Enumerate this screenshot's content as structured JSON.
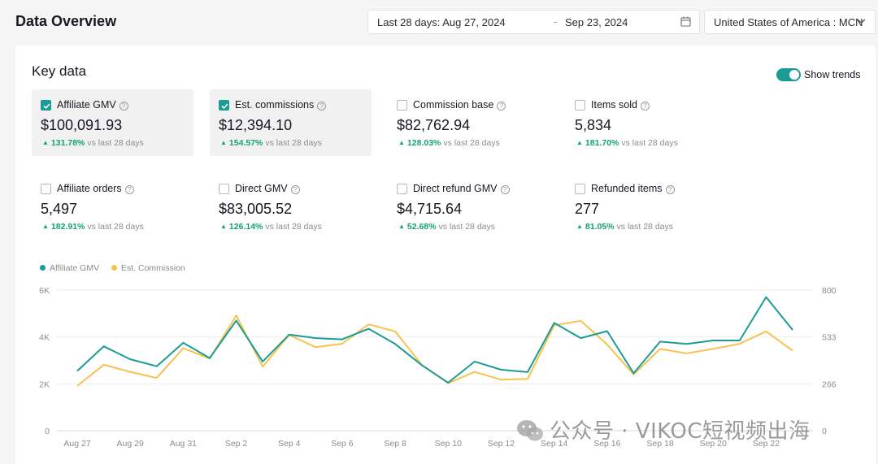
{
  "header": {
    "title": "Data Overview",
    "date_start": "Last 28 days: Aug 27, 2024",
    "date_sep": "-",
    "date_end": "Sep 23, 2024",
    "region": "United States of America : MCN"
  },
  "key_data": {
    "title": "Key data",
    "show_trends_label": "Show trends",
    "show_trends_on": true
  },
  "metrics": [
    {
      "label": "Affiliate GMV",
      "value": "$100,091.93",
      "change": "131.78%",
      "compare": "vs last 28 days",
      "checked": true
    },
    {
      "label": "Est. commissions",
      "value": "$12,394.10",
      "change": "154.57%",
      "compare": "vs last 28 days",
      "checked": true
    },
    {
      "label": "Commission base",
      "value": "$82,762.94",
      "change": "128.03%",
      "compare": "vs last 28 days",
      "checked": false
    },
    {
      "label": "Items sold",
      "value": "5,834",
      "change": "181.70%",
      "compare": "vs last 28 days",
      "checked": false
    },
    {
      "label": "Affiliate orders",
      "value": "5,497",
      "change": "182.91%",
      "compare": "vs last 28 days",
      "checked": false
    },
    {
      "label": "Direct GMV",
      "value": "$83,005.52",
      "change": "126.14%",
      "compare": "vs last 28 days",
      "checked": false
    },
    {
      "label": "Direct refund GMV",
      "value": "$4,715.64",
      "change": "52.68%",
      "compare": "vs last 28 days",
      "checked": false
    },
    {
      "label": "Refunded items",
      "value": "277",
      "change": "81.05%",
      "compare": "vs last 28 days",
      "checked": false
    }
  ],
  "colors": {
    "teal": "#1a9c94",
    "yellow": "#f7c24f",
    "green": "#13a36d"
  },
  "chart_data": {
    "type": "line",
    "title": "",
    "x": [
      "Aug 27",
      "Aug 28",
      "Aug 29",
      "Aug 30",
      "Aug 31",
      "Sep 1",
      "Sep 2",
      "Sep 3",
      "Sep 4",
      "Sep 5",
      "Sep 6",
      "Sep 7",
      "Sep 8",
      "Sep 9",
      "Sep 10",
      "Sep 11",
      "Sep 12",
      "Sep 13",
      "Sep 14",
      "Sep 15",
      "Sep 16",
      "Sep 17",
      "Sep 18",
      "Sep 19",
      "Sep 20",
      "Sep 21",
      "Sep 22",
      "Sep 23"
    ],
    "x_tick_labels": [
      "Aug 27",
      "Aug 29",
      "Aug 31",
      "Sep 2",
      "Sep 4",
      "Sep 6",
      "Sep 8",
      "Sep 10",
      "Sep 12",
      "Sep 14",
      "Sep 16",
      "Sep 18",
      "Sep 20",
      "Sep 22"
    ],
    "y_left": {
      "ticks": [
        "0",
        "2K",
        "4K",
        "6K"
      ],
      "ylim": [
        0,
        6000
      ]
    },
    "y_right": {
      "ticks": [
        "0",
        "266",
        "533",
        "800"
      ],
      "ylim": [
        0,
        800
      ]
    },
    "legend": [
      "Affiliate GMV",
      "Est. Commission"
    ],
    "legend_position": "top-left",
    "series": [
      {
        "name": "Affiliate GMV",
        "axis": "left",
        "color": "#1a9c94",
        "values": [
          2550,
          3600,
          3050,
          2750,
          3750,
          3100,
          4700,
          2950,
          4100,
          3950,
          3900,
          4350,
          3700,
          2800,
          2050,
          2950,
          2600,
          2500,
          4600,
          3950,
          4250,
          2450,
          3800,
          3700,
          3850,
          3850,
          5700,
          4300
        ]
      },
      {
        "name": "Est. Commission",
        "axis": "right",
        "color": "#f7c24f",
        "values": [
          255,
          375,
          335,
          300,
          470,
          410,
          655,
          365,
          545,
          475,
          495,
          605,
          565,
          375,
          270,
          335,
          290,
          295,
          600,
          625,
          490,
          320,
          465,
          440,
          465,
          495,
          565,
          455
        ]
      }
    ],
    "grid": true
  },
  "watermark": "公众号 · VIKOC短视频出海"
}
